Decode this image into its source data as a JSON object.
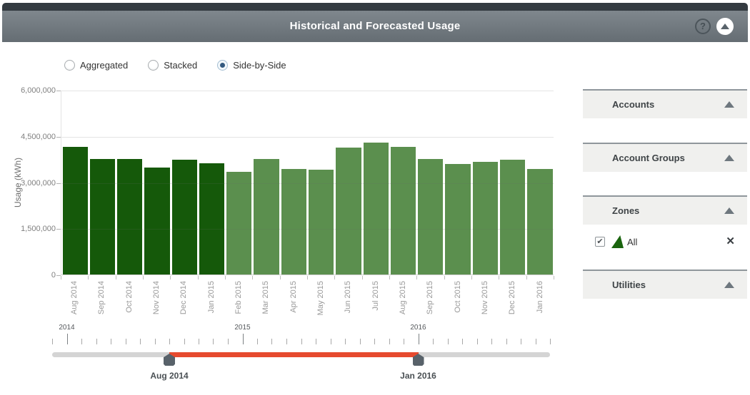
{
  "header": {
    "title": "Historical and Forecasted Usage",
    "help_icon": "?"
  },
  "view_modes": {
    "options": [
      {
        "label": "Aggregated",
        "selected": false
      },
      {
        "label": "Stacked",
        "selected": false
      },
      {
        "label": "Side-by-Side",
        "selected": true
      }
    ]
  },
  "chart_data": {
    "type": "bar",
    "ylabel": "Usage (kWh)",
    "ylim": [
      0,
      6000000
    ],
    "grid": true,
    "yticks": [
      {
        "value": 0,
        "label": "0"
      },
      {
        "value": 1500000,
        "label": "1,500,000"
      },
      {
        "value": 3000000,
        "label": "3,000,000"
      },
      {
        "value": 4500000,
        "label": "4,500,000"
      },
      {
        "value": 6000000,
        "label": "6,000,000"
      }
    ],
    "colors": {
      "historical": "#15590a",
      "forecast": "#5b8f4e"
    },
    "bars": [
      {
        "month": "Aug 2014",
        "value": 4160000,
        "segment": "historical"
      },
      {
        "month": "Sep 2014",
        "value": 3760000,
        "segment": "historical"
      },
      {
        "month": "Oct 2014",
        "value": 3760000,
        "segment": "historical"
      },
      {
        "month": "Nov 2014",
        "value": 3500000,
        "segment": "historical"
      },
      {
        "month": "Dec 2014",
        "value": 3740000,
        "segment": "historical"
      },
      {
        "month": "Jan 2015",
        "value": 3620000,
        "segment": "historical"
      },
      {
        "month": "Feb 2015",
        "value": 3360000,
        "segment": "forecast"
      },
      {
        "month": "Mar 2015",
        "value": 3760000,
        "segment": "forecast"
      },
      {
        "month": "Apr 2015",
        "value": 3450000,
        "segment": "forecast"
      },
      {
        "month": "May 2015",
        "value": 3430000,
        "segment": "forecast"
      },
      {
        "month": "Jun 2015",
        "value": 4130000,
        "segment": "forecast"
      },
      {
        "month": "Jul 2015",
        "value": 4310000,
        "segment": "forecast"
      },
      {
        "month": "Aug 2015",
        "value": 4160000,
        "segment": "forecast"
      },
      {
        "month": "Sep 2015",
        "value": 3770000,
        "segment": "forecast"
      },
      {
        "month": "Oct 2015",
        "value": 3600000,
        "segment": "forecast"
      },
      {
        "month": "Nov 2015",
        "value": 3680000,
        "segment": "forecast"
      },
      {
        "month": "Dec 2015",
        "value": 3750000,
        "segment": "forecast"
      },
      {
        "month": "Jan 2016",
        "value": 3450000,
        "segment": "forecast"
      }
    ]
  },
  "sidebar": {
    "panels": [
      {
        "label": "Accounts",
        "expanded": false
      },
      {
        "label": "Account Groups",
        "expanded": false
      },
      {
        "label": "Zones",
        "expanded": true
      },
      {
        "label": "Utilities",
        "expanded": false
      }
    ],
    "zones_items": [
      {
        "label": "All",
        "checked": true,
        "check_icon": "✔",
        "remove_icon": "✕"
      }
    ]
  },
  "timeline": {
    "tick_count": 35,
    "years": [
      {
        "label": "2014",
        "tick_index": 1
      },
      {
        "label": "2015",
        "tick_index": 13
      },
      {
        "label": "2016",
        "tick_index": 25
      }
    ],
    "range": {
      "start_label": "Aug 2014",
      "end_label": "Jan 2016",
      "start_tick": 8,
      "end_tick": 25
    },
    "colors": {
      "selected_range": "#e64a2e",
      "track": "#d4d4d4",
      "handle": "#58626a"
    }
  }
}
